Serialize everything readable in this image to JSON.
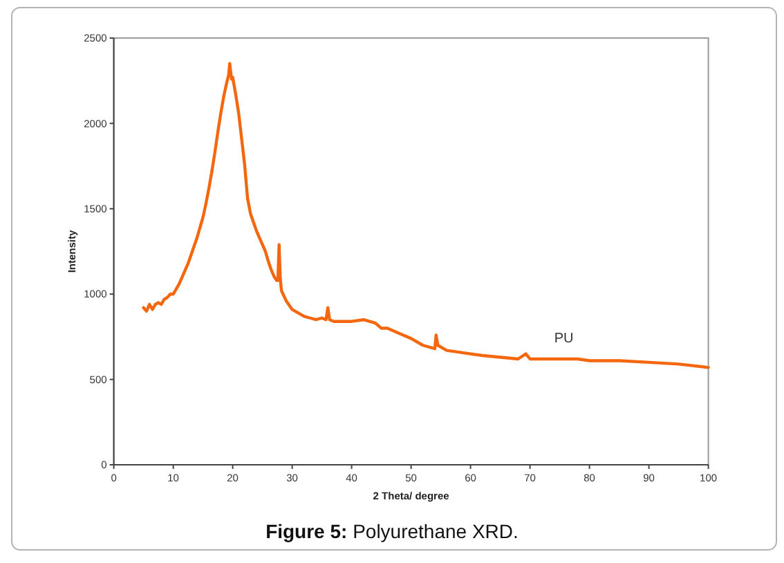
{
  "chart_data": {
    "type": "line",
    "title": "Figure 5: Polyurethane XRD.",
    "xlabel": "2 Theta/ degree",
    "ylabel": "Intensity",
    "xlim": [
      0,
      100
    ],
    "xticks": [
      0,
      10,
      20,
      30,
      40,
      50,
      60,
      70,
      80,
      90,
      100
    ],
    "ylim": [
      0,
      2500
    ],
    "yticks": [
      0,
      500,
      1000,
      1500,
      2000,
      2500
    ],
    "line_style": "solid",
    "x": [
      5,
      5.5,
      6,
      6.5,
      7,
      7.5,
      8,
      8.5,
      9,
      9.5,
      10,
      10.5,
      11,
      11.5,
      12,
      12.5,
      13,
      13.5,
      14,
      14.5,
      15,
      15.5,
      16,
      16.5,
      17,
      17.5,
      18,
      18.5,
      19,
      19.3,
      19.5,
      19.8,
      20,
      20.5,
      21,
      21.5,
      22,
      22.5,
      23,
      23.5,
      24,
      24.5,
      25,
      25.5,
      26,
      26.5,
      27,
      27.4,
      27.6,
      27.8,
      28,
      28.2,
      29,
      30,
      31,
      32,
      33,
      34,
      35,
      35.7,
      36,
      36.3,
      37,
      38,
      40,
      42,
      43,
      44,
      45,
      46,
      48,
      50,
      52,
      54,
      54.2,
      54.5,
      56,
      58,
      60,
      62,
      65,
      68,
      69.3,
      70,
      72,
      75,
      78,
      80,
      85,
      90,
      95,
      100
    ],
    "series": [
      {
        "name": "PU",
        "color": "#f5670f",
        "values": [
          920,
          900,
          940,
          910,
          940,
          950,
          940,
          970,
          980,
          1000,
          1000,
          1030,
          1060,
          1100,
          1140,
          1180,
          1230,
          1280,
          1330,
          1390,
          1450,
          1530,
          1620,
          1720,
          1830,
          1950,
          2060,
          2160,
          2240,
          2280,
          2350,
          2260,
          2270,
          2170,
          2060,
          1910,
          1760,
          1560,
          1470,
          1420,
          1370,
          1330,
          1290,
          1250,
          1190,
          1140,
          1100,
          1080,
          1080,
          1290,
          1090,
          1020,
          960,
          910,
          890,
          870,
          860,
          850,
          860,
          850,
          920,
          850,
          840,
          840,
          840,
          850,
          840,
          830,
          800,
          800,
          770,
          740,
          700,
          680,
          760,
          700,
          670,
          660,
          650,
          640,
          630,
          620,
          650,
          620,
          620,
          620,
          620,
          610,
          610,
          600,
          590,
          570
        ]
      }
    ]
  }
}
